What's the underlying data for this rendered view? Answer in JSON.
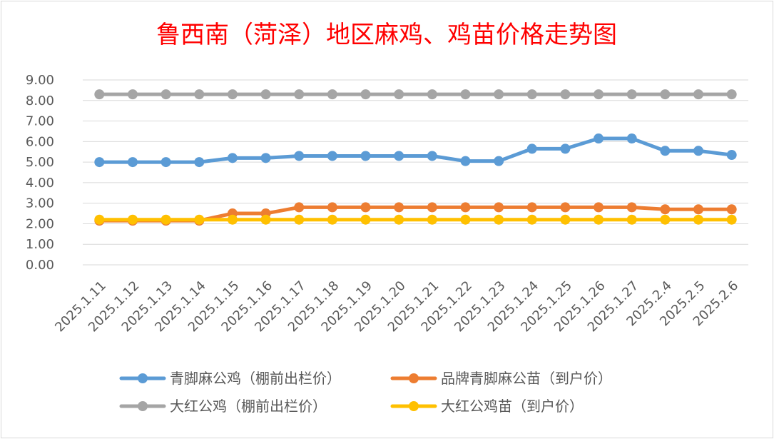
{
  "chart_data": {
    "type": "line",
    "title": "鲁西南（菏泽）地区麻鸡、鸡苗价格走势图",
    "xlabel": "",
    "ylabel": "",
    "ylim": [
      0,
      9
    ],
    "ytick_step": 1,
    "ytick_format": "0.00",
    "grid": true,
    "legend_position": "bottom",
    "categories": [
      "2025.1.11",
      "2025.1.12",
      "2025.1.13",
      "2025.1.14",
      "2025.1.15",
      "2025.1.16",
      "2025.1.17",
      "2025.1.18",
      "2025.1.19",
      "2025.1.20",
      "2025.1.21",
      "2025.1.22",
      "2025.1.23",
      "2025.1.24",
      "2025.1.25",
      "2025.1.26",
      "2025.1.27",
      "2025.2.4",
      "2025.2.5",
      "2025.2.6"
    ],
    "series": [
      {
        "name": "青脚麻公鸡（棚前出栏价）",
        "color": "#5b9bd5",
        "values": [
          5.0,
          5.0,
          5.0,
          5.0,
          5.2,
          5.2,
          5.3,
          5.3,
          5.3,
          5.3,
          5.3,
          5.05,
          5.05,
          5.65,
          5.65,
          6.15,
          6.15,
          5.55,
          5.55,
          5.35
        ]
      },
      {
        "name": "品牌青脚麻公苗（到户价）",
        "color": "#ed7d31",
        "values": [
          2.15,
          2.15,
          2.15,
          2.15,
          2.5,
          2.5,
          2.8,
          2.8,
          2.8,
          2.8,
          2.8,
          2.8,
          2.8,
          2.8,
          2.8,
          2.8,
          2.8,
          2.7,
          2.7,
          2.7
        ]
      },
      {
        "name": "大红公鸡（棚前出栏价）",
        "color": "#a5a5a5",
        "values": [
          8.3,
          8.3,
          8.3,
          8.3,
          8.3,
          8.3,
          8.3,
          8.3,
          8.3,
          8.3,
          8.3,
          8.3,
          8.3,
          8.3,
          8.3,
          8.3,
          8.3,
          8.3,
          8.3,
          8.3
        ]
      },
      {
        "name": "大红公鸡苗（到户价）",
        "color": "#ffc000",
        "values": [
          2.2,
          2.2,
          2.2,
          2.2,
          2.2,
          2.2,
          2.2,
          2.2,
          2.2,
          2.2,
          2.2,
          2.2,
          2.2,
          2.2,
          2.2,
          2.2,
          2.2,
          2.2,
          2.2,
          2.2
        ]
      }
    ],
    "draw_order": [
      0,
      1,
      3,
      2
    ]
  }
}
